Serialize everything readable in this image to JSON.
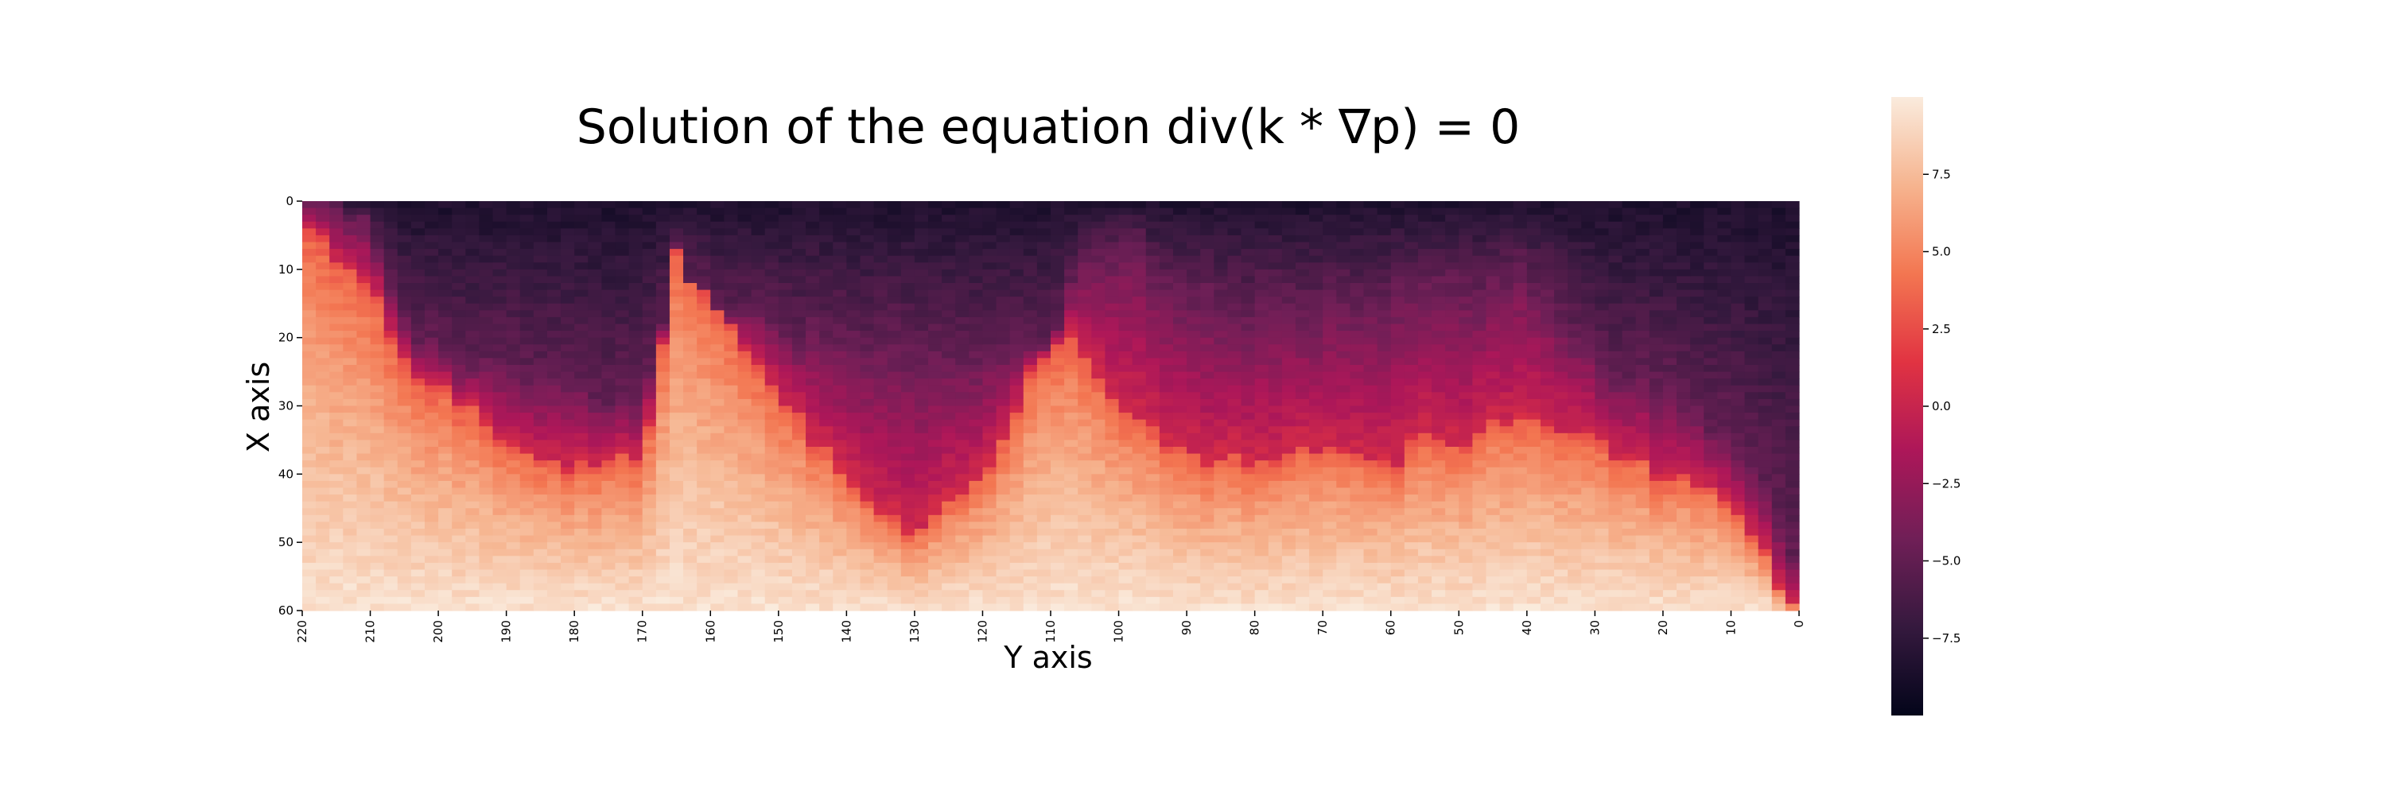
{
  "chart_data": {
    "type": "heatmap",
    "title": "Solution of the equation div(k * ∇p) = 0",
    "xlabel": "Y axis",
    "ylabel": "X axis",
    "x_axis": {
      "range": [
        220,
        0
      ],
      "ticks": [
        220,
        210,
        200,
        190,
        180,
        170,
        160,
        150,
        140,
        130,
        120,
        110,
        100,
        90,
        80,
        70,
        60,
        50,
        40,
        30,
        20,
        10,
        0
      ],
      "tick_labels": [
        "220",
        "210",
        "200",
        "190",
        "180",
        "170",
        "160",
        "150",
        "140",
        "130",
        "120",
        "110",
        "100",
        "90",
        "80",
        "70",
        "60",
        "50",
        "40",
        "30",
        "20",
        "10",
        "0"
      ]
    },
    "y_axis": {
      "range": [
        0,
        60
      ],
      "ticks": [
        0,
        10,
        20,
        30,
        40,
        50,
        60
      ],
      "tick_labels": [
        "0",
        "10",
        "20",
        "30",
        "40",
        "50",
        "60"
      ]
    },
    "colorbar": {
      "range": [
        -10,
        10
      ],
      "ticks": [
        -7.5,
        -5.0,
        -2.5,
        0.0,
        2.5,
        5.0,
        7.5
      ],
      "tick_labels": [
        "−7.5",
        "−5.0",
        "−2.5",
        "0.0",
        "2.5",
        "5.0",
        "7.5"
      ],
      "colormap": "rocket",
      "colors": [
        "#03051a",
        "#35193e",
        "#701f57",
        "#ad1759",
        "#e13342",
        "#f37651",
        "#f6b48f",
        "#faebdd"
      ]
    },
    "grid": false,
    "columns_y": [
      220,
      210,
      205,
      200,
      190,
      180,
      170,
      165,
      160,
      150,
      140,
      130,
      120,
      110,
      105,
      100,
      90,
      80,
      70,
      60,
      55,
      50,
      40,
      30,
      20,
      10,
      5,
      0
    ],
    "boundary_depth_x": [
      4,
      12,
      24,
      27,
      35,
      39,
      38,
      8,
      15,
      28,
      41,
      50,
      40,
      20,
      22,
      30,
      38,
      38,
      36,
      40,
      34,
      36,
      30,
      36,
      40,
      44,
      52,
      62
    ],
    "dark_depth_x": [
      0,
      2,
      18,
      22,
      25,
      27,
      30,
      8,
      15,
      18,
      20,
      22,
      22,
      20,
      8,
      5,
      12,
      15,
      14,
      14,
      10,
      12,
      10,
      22,
      28,
      34,
      42,
      55
    ],
    "boundary_value": 0.5,
    "deep_value": 9.5,
    "surface_value": -8.5
  }
}
